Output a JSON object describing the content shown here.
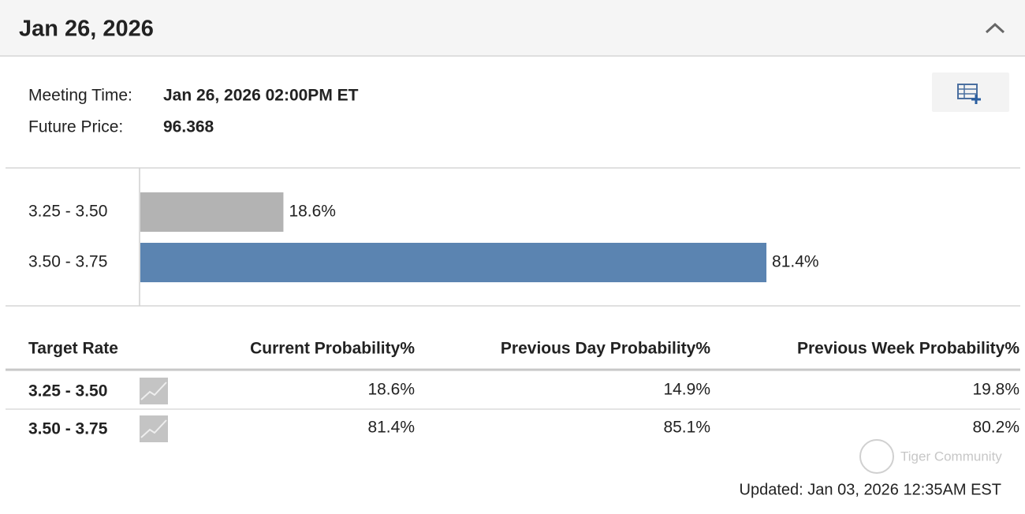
{
  "header": {
    "title": "Jan 26, 2026"
  },
  "info": {
    "meeting_label": "Meeting Time:",
    "meeting_value": "Jan 26, 2026 02:00PM ET",
    "price_label": "Future Price:",
    "price_value": "96.368"
  },
  "chart_data": {
    "type": "bar",
    "orientation": "horizontal",
    "categories": [
      "3.25 - 3.50",
      "3.50 - 3.75"
    ],
    "values": [
      18.6,
      81.4
    ],
    "value_labels": [
      "18.6%",
      "81.4%"
    ],
    "colors": [
      "#b3b3b3",
      "#5b84b1"
    ]
  },
  "table": {
    "columns": [
      "Target Rate",
      "Current Probability%",
      "Previous Day Probability%",
      "Previous Week Probability%"
    ],
    "rows": [
      [
        "3.25 - 3.50",
        "18.6%",
        "14.9%",
        "19.8%"
      ],
      [
        "3.50 - 3.75",
        "81.4%",
        "85.1%",
        "80.2%"
      ]
    ]
  },
  "footer": {
    "updated": "Updated: Jan 03, 2026 12:35AM EST",
    "watermark": "Tiger Community"
  }
}
